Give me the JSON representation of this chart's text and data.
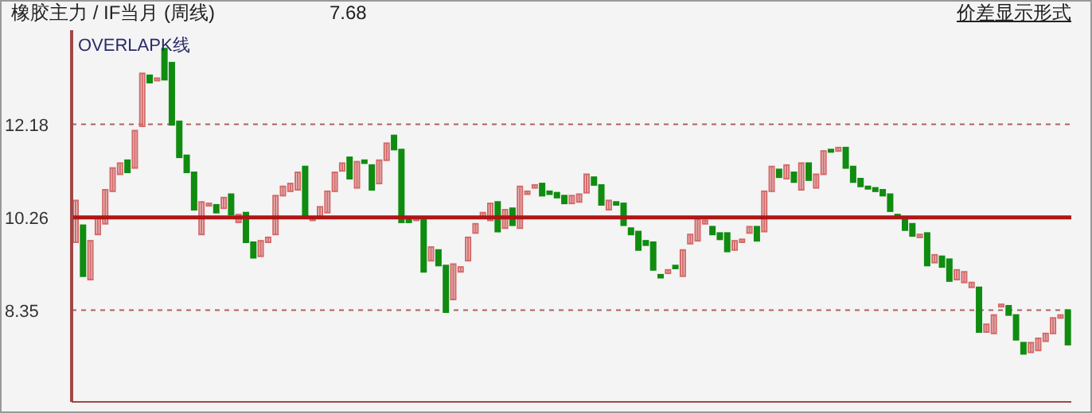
{
  "chart_data": {
    "type": "candlestick",
    "title": "橡胶主力 / IF当月 (周线)",
    "annotations": [
      "7.68",
      "OVERLAPK线",
      "价差显示形式"
    ],
    "categories": [
      null,
      null,
      null,
      null,
      null,
      null,
      null,
      null,
      null,
      null,
      null,
      null,
      null,
      null,
      null,
      null,
      null,
      null,
      null,
      null,
      null,
      null,
      null,
      null,
      null,
      null,
      null,
      null,
      null,
      null,
      null,
      null,
      null,
      null,
      null,
      null,
      null,
      null,
      null,
      null,
      null,
      null,
      null,
      null,
      null,
      null,
      null,
      null,
      null,
      null,
      null,
      null,
      null,
      null,
      null,
      null,
      null,
      null,
      null,
      null,
      null,
      null,
      null,
      null,
      null,
      null,
      null,
      null,
      null,
      null,
      null,
      null,
      null,
      null,
      null,
      null,
      null,
      null,
      null,
      null,
      null,
      null,
      null,
      null,
      null,
      null,
      null,
      null,
      null,
      null,
      null,
      null,
      null,
      null,
      null,
      null,
      null,
      null,
      null,
      null,
      null,
      null,
      null,
      null,
      null,
      null,
      null,
      null,
      null,
      null,
      null,
      null,
      null,
      null,
      null,
      null,
      null,
      null,
      null,
      null,
      null,
      null,
      null,
      null,
      null,
      null,
      null,
      null,
      null,
      null,
      null,
      null,
      null,
      null,
      null
    ],
    "ohlc": [
      [
        9.75,
        10.61,
        9.75,
        10.61
      ],
      [
        10.1,
        10.1,
        9.05,
        9.05
      ],
      [
        8.98,
        9.78,
        8.98,
        9.78
      ],
      [
        9.91,
        10.26,
        9.91,
        10.26
      ],
      [
        10.13,
        10.83,
        10.13,
        10.83
      ],
      [
        10.8,
        11.28,
        10.8,
        11.28
      ],
      [
        11.15,
        11.38,
        11.15,
        11.38
      ],
      [
        11.44,
        11.44,
        11.19,
        11.19
      ],
      [
        11.28,
        12.05,
        11.28,
        12.05
      ],
      [
        12.14,
        13.23,
        12.14,
        13.23
      ],
      [
        13.19,
        13.19,
        13.04,
        13.04
      ],
      [
        13.1,
        13.13,
        13.1,
        13.13
      ],
      [
        13.74,
        13.74,
        13.1,
        13.1
      ],
      [
        13.45,
        13.45,
        12.17,
        12.17
      ],
      [
        12.24,
        12.24,
        11.5,
        11.5
      ],
      [
        11.54,
        11.54,
        11.19,
        11.19
      ],
      [
        11.19,
        11.19,
        10.42,
        10.42
      ],
      [
        9.91,
        10.58,
        9.91,
        10.58
      ],
      [
        10.52,
        10.55,
        10.52,
        10.55
      ],
      [
        10.52,
        10.52,
        10.36,
        10.36
      ],
      [
        10.45,
        10.67,
        10.45,
        10.67
      ],
      [
        10.74,
        10.74,
        10.32,
        10.32
      ],
      [
        10.16,
        10.32,
        10.16,
        10.32
      ],
      [
        10.36,
        10.36,
        9.75,
        9.75
      ],
      [
        9.75,
        9.75,
        9.43,
        9.43
      ],
      [
        9.46,
        9.78,
        9.46,
        9.78
      ],
      [
        9.75,
        9.85,
        9.75,
        9.85
      ],
      [
        9.91,
        10.71,
        9.91,
        10.71
      ],
      [
        10.71,
        10.9,
        10.71,
        10.9
      ],
      [
        10.8,
        10.96,
        10.8,
        10.96
      ],
      [
        10.83,
        11.19,
        10.83,
        11.19
      ],
      [
        11.31,
        11.31,
        10.26,
        10.26
      ],
      [
        10.2,
        10.26,
        10.2,
        10.26
      ],
      [
        10.26,
        10.48,
        10.26,
        10.48
      ],
      [
        10.36,
        10.8,
        10.36,
        10.8
      ],
      [
        10.8,
        11.19,
        10.8,
        11.19
      ],
      [
        11.22,
        11.38,
        11.22,
        11.38
      ],
      [
        11.5,
        11.5,
        11.06,
        11.06
      ],
      [
        10.87,
        11.41,
        10.87,
        11.41
      ],
      [
        11.44,
        11.44,
        11.38,
        11.38
      ],
      [
        11.34,
        11.34,
        10.83,
        10.83
      ],
      [
        10.96,
        11.44,
        10.96,
        11.44
      ],
      [
        11.44,
        11.79,
        11.44,
        11.79
      ],
      [
        11.95,
        11.95,
        11.66,
        11.66
      ],
      [
        11.66,
        11.66,
        10.16,
        10.16
      ],
      [
        10.23,
        10.23,
        10.16,
        10.16
      ],
      [
        10.2,
        10.26,
        10.2,
        10.26
      ],
      [
        10.26,
        10.26,
        9.14,
        9.14
      ],
      [
        9.37,
        9.65,
        9.37,
        9.65
      ],
      [
        9.59,
        9.59,
        9.27,
        9.27
      ],
      [
        9.27,
        9.27,
        8.31,
        8.31
      ],
      [
        8.57,
        9.3,
        8.57,
        9.3
      ],
      [
        9.14,
        9.24,
        9.14,
        9.24
      ],
      [
        9.37,
        9.85,
        9.37,
        9.85
      ],
      [
        9.94,
        10.13,
        9.94,
        10.13
      ],
      [
        10.26,
        10.36,
        10.26,
        10.36
      ],
      [
        10.2,
        10.55,
        10.2,
        10.55
      ],
      [
        10.58,
        10.58,
        9.97,
        9.97
      ],
      [
        10.04,
        10.42,
        10.04,
        10.42
      ],
      [
        10.45,
        10.45,
        10.1,
        10.1
      ],
      [
        10.04,
        10.9,
        10.04,
        10.9
      ],
      [
        10.74,
        10.8,
        10.74,
        10.8
      ],
      [
        10.87,
        10.93,
        10.87,
        10.93
      ],
      [
        10.96,
        10.96,
        10.71,
        10.71
      ],
      [
        10.8,
        10.8,
        10.74,
        10.74
      ],
      [
        10.77,
        10.77,
        10.67,
        10.67
      ],
      [
        10.71,
        10.71,
        10.55,
        10.55
      ],
      [
        10.55,
        10.71,
        10.55,
        10.71
      ],
      [
        10.58,
        10.74,
        10.58,
        10.74
      ],
      [
        10.77,
        11.15,
        10.77,
        11.15
      ],
      [
        11.09,
        11.09,
        10.93,
        10.93
      ],
      [
        10.93,
        10.93,
        10.52,
        10.52
      ],
      [
        10.42,
        10.61,
        10.42,
        10.61
      ],
      [
        10.58,
        10.58,
        10.52,
        10.52
      ],
      [
        10.55,
        10.55,
        10.1,
        10.1
      ],
      [
        10.04,
        10.04,
        9.91,
        9.91
      ],
      [
        9.97,
        9.97,
        9.59,
        9.59
      ],
      [
        9.78,
        9.78,
        9.69,
        9.69
      ],
      [
        9.75,
        9.75,
        9.18,
        9.18
      ],
      [
        9.08,
        9.08,
        9.02,
        9.02
      ],
      [
        9.11,
        9.18,
        9.11,
        9.18
      ],
      [
        9.27,
        9.27,
        9.21,
        9.21
      ],
      [
        9.05,
        9.59,
        9.05,
        9.59
      ],
      [
        9.72,
        9.91,
        9.72,
        9.91
      ],
      [
        9.78,
        10.23,
        9.78,
        10.23
      ],
      [
        10.13,
        10.2,
        10.13,
        10.2
      ],
      [
        10.07,
        10.07,
        9.91,
        9.91
      ],
      [
        9.94,
        9.94,
        9.81,
        9.81
      ],
      [
        9.94,
        9.94,
        9.56,
        9.56
      ],
      [
        9.59,
        9.78,
        9.59,
        9.78
      ],
      [
        9.75,
        9.81,
        9.75,
        9.81
      ],
      [
        9.94,
        10.07,
        9.94,
        10.07
      ],
      [
        10.07,
        10.07,
        9.78,
        9.78
      ],
      [
        9.97,
        10.8,
        9.97,
        10.8
      ],
      [
        10.8,
        11.31,
        10.8,
        11.31
      ],
      [
        11.25,
        11.25,
        11.09,
        11.09
      ],
      [
        11.06,
        11.34,
        11.06,
        11.34
      ],
      [
        11.19,
        11.19,
        10.99,
        10.99
      ],
      [
        10.83,
        11.38,
        10.83,
        11.38
      ],
      [
        11.38,
        11.38,
        11.03,
        11.03
      ],
      [
        10.87,
        11.15,
        10.87,
        11.15
      ],
      [
        11.15,
        11.63,
        11.15,
        11.63
      ],
      [
        11.66,
        11.66,
        11.63,
        11.63
      ],
      [
        11.63,
        11.7,
        11.63,
        11.7
      ],
      [
        11.7,
        11.7,
        11.28,
        11.28
      ],
      [
        11.31,
        11.31,
        10.99,
        10.99
      ],
      [
        11.06,
        11.06,
        10.9,
        10.9
      ],
      [
        10.9,
        10.9,
        10.87,
        10.87
      ],
      [
        10.87,
        10.87,
        10.8,
        10.8
      ],
      [
        10.83,
        10.83,
        10.71,
        10.71
      ],
      [
        10.74,
        10.74,
        10.39,
        10.39
      ],
      [
        10.32,
        10.32,
        10.26,
        10.26
      ],
      [
        10.26,
        10.26,
        10.0,
        10.0
      ],
      [
        10.13,
        10.13,
        9.88,
        9.88
      ],
      [
        9.85,
        9.91,
        9.85,
        9.91
      ],
      [
        9.94,
        9.94,
        9.27,
        9.27
      ],
      [
        9.33,
        9.49,
        9.33,
        9.49
      ],
      [
        9.46,
        9.46,
        9.24,
        9.24
      ],
      [
        9.4,
        9.4,
        8.95,
        8.95
      ],
      [
        8.98,
        9.18,
        8.98,
        9.18
      ],
      [
        8.92,
        9.14,
        8.92,
        9.14
      ],
      [
        8.82,
        8.92,
        8.82,
        8.92
      ],
      [
        8.82,
        8.82,
        7.9,
        7.9
      ],
      [
        7.9,
        8.06,
        7.9,
        8.06
      ],
      [
        7.87,
        8.25,
        7.87,
        8.25
      ],
      [
        8.44,
        8.47,
        8.44,
        8.47
      ],
      [
        8.44,
        8.44,
        8.25,
        8.25
      ],
      [
        8.25,
        8.25,
        7.74,
        7.74
      ],
      [
        7.68,
        7.68,
        7.45,
        7.45
      ],
      [
        7.48,
        7.68,
        7.48,
        7.68
      ],
      [
        7.52,
        7.77,
        7.52,
        7.77
      ],
      [
        7.71,
        7.87,
        7.71,
        7.87
      ],
      [
        7.87,
        8.19,
        7.87,
        8.19
      ],
      [
        8.19,
        8.25,
        8.19,
        8.25
      ],
      [
        8.35,
        8.35,
        7.64,
        7.64
      ]
    ],
    "colors": [
      "#d46a6a",
      "#108c10",
      "#d46a6a",
      "#d46a6a",
      "#d46a6a",
      "#d46a6a",
      "#d46a6a",
      "#108c10",
      "#d46a6a",
      "#d46a6a",
      "#108c10",
      "#d46a6a",
      "#108c10",
      "#108c10",
      "#108c10",
      "#108c10",
      "#108c10",
      "#d46a6a",
      "#d46a6a",
      "#108c10",
      "#d46a6a",
      "#108c10",
      "#d46a6a",
      "#108c10",
      "#108c10",
      "#d46a6a",
      "#d46a6a",
      "#d46a6a",
      "#d46a6a",
      "#d46a6a",
      "#d46a6a",
      "#108c10",
      "#d46a6a",
      "#d46a6a",
      "#d46a6a",
      "#d46a6a",
      "#d46a6a",
      "#108c10",
      "#d46a6a",
      "#108c10",
      "#108c10",
      "#d46a6a",
      "#d46a6a",
      "#108c10",
      "#108c10",
      "#108c10",
      "#d46a6a",
      "#108c10",
      "#d46a6a",
      "#108c10",
      "#108c10",
      "#d46a6a",
      "#d46a6a",
      "#d46a6a",
      "#d46a6a",
      "#d46a6a",
      "#d46a6a",
      "#108c10",
      "#d46a6a",
      "#108c10",
      "#d46a6a",
      "#d46a6a",
      "#d46a6a",
      "#108c10",
      "#108c10",
      "#108c10",
      "#108c10",
      "#d46a6a",
      "#d46a6a",
      "#d46a6a",
      "#108c10",
      "#108c10",
      "#d46a6a",
      "#108c10",
      "#108c10",
      "#108c10",
      "#108c10",
      "#108c10",
      "#108c10",
      "#108c10",
      "#d46a6a",
      "#108c10",
      "#d46a6a",
      "#d46a6a",
      "#d46a6a",
      "#d46a6a",
      "#108c10",
      "#108c10",
      "#108c10",
      "#d46a6a",
      "#d46a6a",
      "#d46a6a",
      "#108c10",
      "#d46a6a",
      "#d46a6a",
      "#108c10",
      "#d46a6a",
      "#108c10",
      "#d46a6a",
      "#108c10",
      "#d46a6a",
      "#d46a6a",
      "#108c10",
      "#d46a6a",
      "#108c10",
      "#108c10",
      "#108c10",
      "#108c10",
      "#108c10",
      "#108c10",
      "#108c10",
      "#108c10",
      "#108c10",
      "#108c10",
      "#d46a6a",
      "#108c10",
      "#d46a6a",
      "#108c10",
      "#108c10",
      "#d46a6a",
      "#d46a6a",
      "#d46a6a",
      "#108c10",
      "#d46a6a",
      "#d46a6a",
      "#d46a6a",
      "#108c10",
      "#108c10",
      "#108c10",
      "#d46a6a",
      "#d46a6a",
      "#d46a6a",
      "#d46a6a",
      "#d46a6a",
      "#108c10"
    ],
    "ylim": [
      6.46,
      14.12
    ],
    "yticks": [
      8.35,
      10.26,
      12.18
    ],
    "grid": "y",
    "tick_labels": "y",
    "ref_lines": [
      {
        "axis": "y",
        "value": 10.26,
        "color": "#b01515"
      }
    ]
  }
}
